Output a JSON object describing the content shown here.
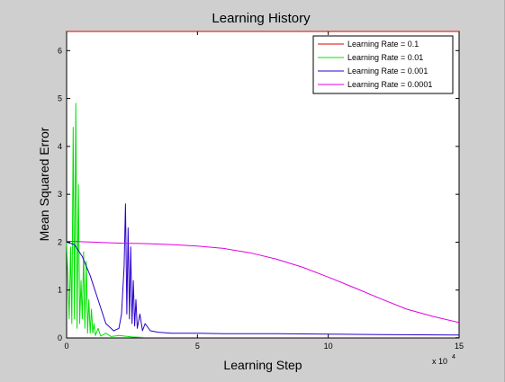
{
  "chart_data": {
    "type": "line",
    "title": "Learning History",
    "xlabel": "Learning Step",
    "ylabel": "Mean Squared Error",
    "x_exponent_label": "x 10",
    "x_exponent_power": "4",
    "xlim": [
      0,
      15
    ],
    "ylim": [
      0,
      6.4
    ],
    "xticks": [
      0,
      5,
      10,
      15
    ],
    "yticks": [
      0,
      1,
      2,
      3,
      4,
      5,
      6
    ],
    "legend_position": "top-right",
    "grid": false,
    "series": [
      {
        "name": "Learning Rate = 0.1",
        "color": "#e00000",
        "x": [
          0,
          15
        ],
        "y": [
          6.4,
          6.4
        ]
      },
      {
        "name": "Learning Rate = 0.01",
        "color": "#00e000",
        "x": [
          0,
          0.05,
          0.1,
          0.15,
          0.2,
          0.25,
          0.3,
          0.35,
          0.4,
          0.45,
          0.5,
          0.55,
          0.6,
          0.65,
          0.7,
          0.75,
          0.8,
          0.85,
          0.9,
          0.95,
          1.0,
          1.05,
          1.1,
          1.2,
          1.3,
          1.5,
          1.7,
          2.0,
          2.5,
          3,
          4,
          6,
          8,
          10,
          15
        ],
        "y": [
          2.0,
          1.2,
          0.4,
          1.9,
          0.3,
          4.4,
          0.4,
          4.9,
          0.2,
          3.2,
          0.3,
          1.2,
          0.4,
          1.8,
          0.2,
          1.6,
          0.1,
          0.8,
          0.1,
          0.6,
          0.1,
          0.3,
          0.05,
          0.2,
          0.04,
          0.1,
          0.03,
          0.05,
          0.02,
          0.01,
          0.01,
          0.01,
          0.01,
          0.01,
          0.01
        ]
      },
      {
        "name": "Learning Rate = 0.001",
        "color": "#2a00c8",
        "x": [
          0,
          0.3,
          0.6,
          0.9,
          1.2,
          1.5,
          1.8,
          2.0,
          2.1,
          2.2,
          2.25,
          2.3,
          2.35,
          2.4,
          2.45,
          2.5,
          2.55,
          2.6,
          2.65,
          2.7,
          2.8,
          2.9,
          3.0,
          3.2,
          3.5,
          4,
          5,
          6,
          8,
          10,
          12,
          15
        ],
        "y": [
          2.0,
          1.95,
          1.7,
          1.3,
          0.8,
          0.3,
          0.15,
          0.2,
          0.5,
          1.5,
          2.8,
          0.5,
          2.3,
          0.4,
          1.9,
          0.3,
          1.2,
          0.25,
          0.8,
          0.2,
          0.5,
          0.15,
          0.3,
          0.15,
          0.12,
          0.1,
          0.1,
          0.09,
          0.09,
          0.08,
          0.07,
          0.06
        ]
      },
      {
        "name": "Learning Rate = 0.0001",
        "color": "#e000e0",
        "x": [
          0,
          1,
          2,
          3,
          4,
          5,
          6,
          7,
          8,
          9,
          10,
          11,
          12,
          13,
          14,
          15
        ],
        "y": [
          2.02,
          2.0,
          1.98,
          1.97,
          1.95,
          1.92,
          1.87,
          1.78,
          1.65,
          1.48,
          1.27,
          1.05,
          0.82,
          0.6,
          0.45,
          0.32
        ]
      }
    ]
  }
}
